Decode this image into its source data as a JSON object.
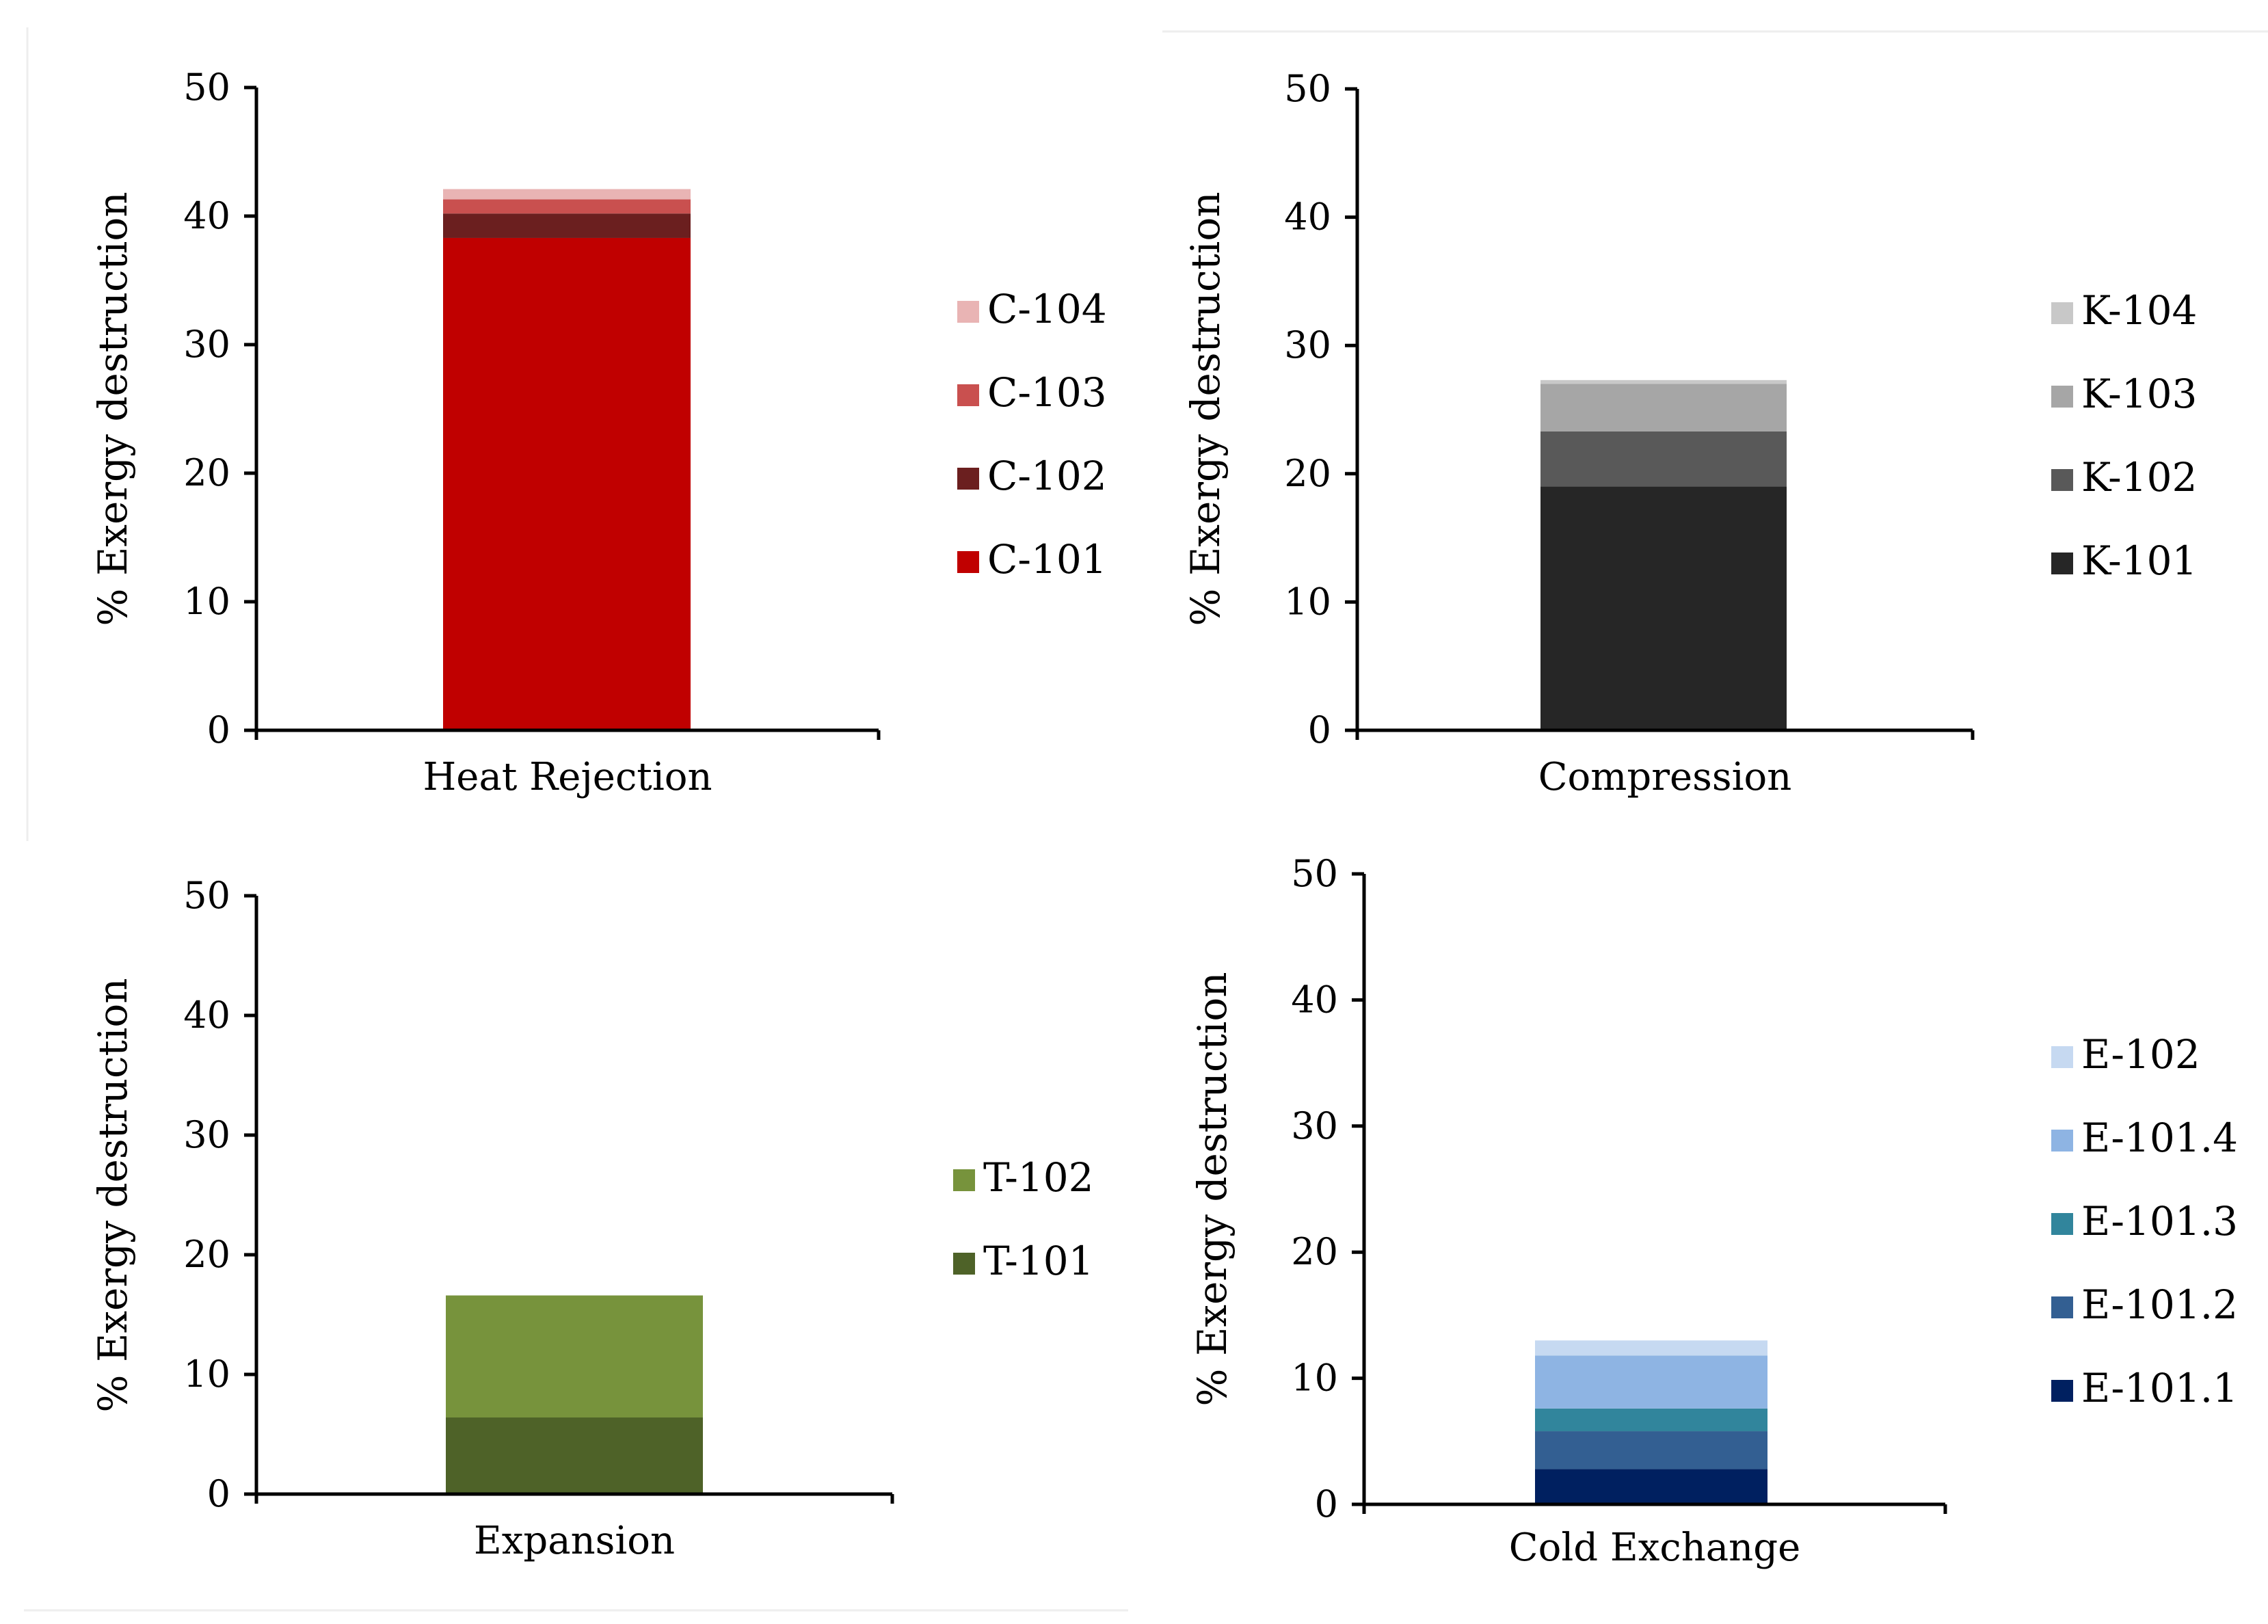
{
  "chart_data": [
    {
      "type": "bar",
      "stacked": true,
      "categories": [
        "Heat Rejection"
      ],
      "ylabel": "% Exergy destruction",
      "ylim": [
        0,
        50
      ],
      "yticks": [
        0,
        10,
        20,
        30,
        40,
        50
      ],
      "grid": false,
      "legend_position": "right",
      "series": [
        {
          "name": "C-101",
          "values": [
            38.3
          ],
          "color": "#C00000"
        },
        {
          "name": "C-102",
          "values": [
            1.9
          ],
          "color": "#6B1F1F"
        },
        {
          "name": "C-103",
          "values": [
            1.1
          ],
          "color": "#C9504F"
        },
        {
          "name": "C-104",
          "values": [
            0.8
          ],
          "color": "#E9B4B4"
        }
      ]
    },
    {
      "type": "bar",
      "stacked": true,
      "categories": [
        "Compression"
      ],
      "ylabel": "% Exergy destruction",
      "ylim": [
        0,
        50
      ],
      "yticks": [
        0,
        10,
        20,
        30,
        40,
        50
      ],
      "grid": false,
      "legend_position": "right",
      "series": [
        {
          "name": "K-101",
          "values": [
            19.0
          ],
          "color": "#262626"
        },
        {
          "name": "K-102",
          "values": [
            4.3
          ],
          "color": "#595959"
        },
        {
          "name": "K-103",
          "values": [
            3.7
          ],
          "color": "#A6A6A6"
        },
        {
          "name": "K-104",
          "values": [
            0.3
          ],
          "color": "#C8C8C8"
        }
      ]
    },
    {
      "type": "bar",
      "stacked": true,
      "categories": [
        "Expansion"
      ],
      "ylabel": "% Exergy destruction",
      "ylim": [
        0,
        50
      ],
      "yticks": [
        0,
        10,
        20,
        30,
        40,
        50
      ],
      "grid": false,
      "legend_position": "right",
      "series": [
        {
          "name": "T-101",
          "values": [
            6.4
          ],
          "color": "#4E6228"
        },
        {
          "name": "T-102",
          "values": [
            10.2
          ],
          "color": "#77933C"
        }
      ]
    },
    {
      "type": "bar",
      "stacked": true,
      "categories": [
        "Cold Exchange"
      ],
      "ylabel": "% Exergy destruction",
      "ylim": [
        0,
        50
      ],
      "yticks": [
        0,
        10,
        20,
        30,
        40,
        50
      ],
      "grid": false,
      "legend_position": "right",
      "series": [
        {
          "name": "E-101.1",
          "values": [
            2.8
          ],
          "color": "#002060"
        },
        {
          "name": "E-101.2",
          "values": [
            3.0
          ],
          "color": "#335F92"
        },
        {
          "name": "E-101.3",
          "values": [
            1.8
          ],
          "color": "#31859C"
        },
        {
          "name": "E-101.4",
          "values": [
            4.2
          ],
          "color": "#8EB4E3"
        },
        {
          "name": "E-102",
          "values": [
            1.2
          ],
          "color": "#C6D9F1"
        }
      ]
    }
  ]
}
